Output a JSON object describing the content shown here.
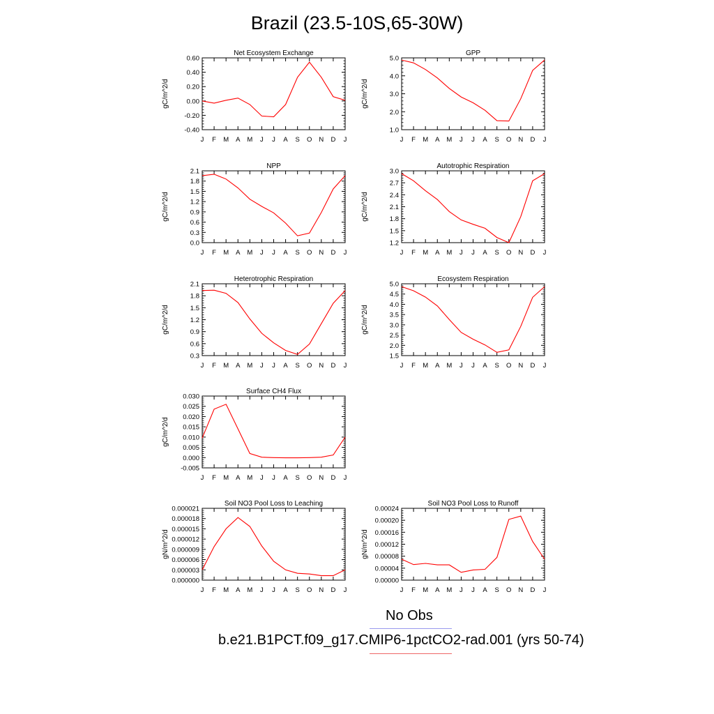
{
  "title": "Brazil (23.5-10S,65-30W)",
  "legend": {
    "obs_label": "No Obs",
    "obs_color": "#9999ee",
    "model_label": "b.e21.B1PCT.f09_g17.CMIP6-1pctCO2-rad.001 (yrs 50-74)",
    "model_color": "#ee6666"
  },
  "chart_data": [
    {
      "type": "line",
      "title": "Net Ecosystem Exchange",
      "ylabel": "gC/m^2/d",
      "categories": [
        "J",
        "F",
        "M",
        "A",
        "M",
        "J",
        "J",
        "A",
        "S",
        "O",
        "N",
        "D",
        "J"
      ],
      "yticks": [
        "0.60",
        "0.40",
        "0.20",
        "0.00",
        "-0.20",
        "-0.40"
      ],
      "ylim": [
        -0.4,
        0.6
      ],
      "series": [
        {
          "values": [
            0.0,
            -0.03,
            0.01,
            0.04,
            -0.05,
            -0.21,
            -0.22,
            -0.05,
            0.33,
            0.54,
            0.33,
            0.06,
            0.01
          ],
          "color": "#ff0000"
        }
      ]
    },
    {
      "type": "line",
      "title": "GPP",
      "ylabel": "gC/m^2/d",
      "categories": [
        "J",
        "F",
        "M",
        "A",
        "M",
        "J",
        "J",
        "A",
        "S",
        "O",
        "N",
        "D",
        "J"
      ],
      "yticks": [
        "5.0",
        "4.0",
        "3.0",
        "2.0",
        "1.0"
      ],
      "ylim": [
        1.0,
        5.0
      ],
      "series": [
        {
          "values": [
            4.88,
            4.72,
            4.35,
            3.88,
            3.3,
            2.82,
            2.5,
            2.08,
            1.5,
            1.48,
            2.72,
            4.3,
            4.88
          ],
          "color": "#ff0000"
        }
      ]
    },
    {
      "type": "line",
      "title": "NPP",
      "ylabel": "gC/m^2/d",
      "categories": [
        "J",
        "F",
        "M",
        "A",
        "M",
        "J",
        "J",
        "A",
        "S",
        "O",
        "N",
        "D",
        "J"
      ],
      "yticks": [
        "2.1",
        "1.8",
        "1.5",
        "1.2",
        "0.9",
        "0.6",
        "0.3",
        "0.0"
      ],
      "ylim": [
        0.0,
        2.1
      ],
      "series": [
        {
          "values": [
            1.96,
            2.0,
            1.86,
            1.6,
            1.27,
            1.06,
            0.87,
            0.57,
            0.2,
            0.28,
            0.88,
            1.57,
            1.96
          ],
          "color": "#ff0000"
        }
      ]
    },
    {
      "type": "line",
      "title": "Autotrophic Respiration",
      "ylabel": "gC/m^2/d",
      "categories": [
        "J",
        "F",
        "M",
        "A",
        "M",
        "J",
        "J",
        "A",
        "S",
        "O",
        "N",
        "D",
        "J"
      ],
      "yticks": [
        "3.0",
        "2.7",
        "2.4",
        "2.1",
        "1.8",
        "1.5",
        "1.2"
      ],
      "ylim": [
        1.2,
        3.0
      ],
      "series": [
        {
          "values": [
            2.93,
            2.75,
            2.5,
            2.28,
            1.98,
            1.77,
            1.66,
            1.56,
            1.33,
            1.2,
            1.85,
            2.75,
            2.93
          ],
          "color": "#ff0000"
        }
      ]
    },
    {
      "type": "line",
      "title": "Heterotrophic Respiration",
      "ylabel": "gC/m^2/d",
      "categories": [
        "J",
        "F",
        "M",
        "A",
        "M",
        "J",
        "J",
        "A",
        "S",
        "O",
        "N",
        "D",
        "J"
      ],
      "yticks": [
        "2.1",
        "1.8",
        "1.5",
        "1.2",
        "0.9",
        "0.6",
        "0.3"
      ],
      "ylim": [
        0.3,
        2.1
      ],
      "series": [
        {
          "values": [
            1.93,
            1.94,
            1.86,
            1.63,
            1.22,
            0.86,
            0.62,
            0.43,
            0.33,
            0.59,
            1.1,
            1.61,
            1.93
          ],
          "color": "#ff0000"
        }
      ]
    },
    {
      "type": "line",
      "title": "Ecosystem Respiration",
      "ylabel": "gC/m^2/d",
      "categories": [
        "J",
        "F",
        "M",
        "A",
        "M",
        "J",
        "J",
        "A",
        "S",
        "O",
        "N",
        "D",
        "J"
      ],
      "yticks": [
        "5.0",
        "4.5",
        "4.0",
        "3.5",
        "3.0",
        "2.5",
        "2.0",
        "1.5"
      ],
      "ylim": [
        1.5,
        5.0
      ],
      "series": [
        {
          "values": [
            4.86,
            4.66,
            4.35,
            3.92,
            3.26,
            2.63,
            2.3,
            2.02,
            1.66,
            1.78,
            2.92,
            4.34,
            4.86
          ],
          "color": "#ff0000"
        }
      ]
    },
    {
      "type": "line",
      "title": "Surface CH4 Flux",
      "ylabel": "gC/m^2/d",
      "categories": [
        "J",
        "F",
        "M",
        "A",
        "M",
        "J",
        "J",
        "A",
        "S",
        "O",
        "N",
        "D",
        "J"
      ],
      "yticks": [
        "0.030",
        "0.025",
        "0.020",
        "0.015",
        "0.010",
        "0.005",
        "0.000",
        "-0.005"
      ],
      "ylim": [
        -0.005,
        0.03
      ],
      "series": [
        {
          "values": [
            0.0095,
            0.0236,
            0.026,
            0.014,
            0.002,
            0.0002,
            0.0,
            -0.0001,
            -0.0001,
            0.0,
            0.0002,
            0.0013,
            0.01
          ],
          "color": "#ff0000"
        }
      ]
    },
    {
      "type": "line",
      "title": "Soil NO3 Pool Loss to Leaching",
      "ylabel": "gN/m^2/d",
      "categories": [
        "J",
        "F",
        "M",
        "A",
        "M",
        "J",
        "J",
        "A",
        "S",
        "O",
        "N",
        "D",
        "J"
      ],
      "yticks": [
        "0.000021",
        "0.000018",
        "0.000015",
        "0.000012",
        "0.000009",
        "0.000006",
        "0.000003",
        "0.000000"
      ],
      "ylim": [
        0.0,
        2.1e-05
      ],
      "series": [
        {
          "values": [
            3e-06,
            9.8e-06,
            1.5e-05,
            1.83e-05,
            1.57e-05,
            1e-05,
            5.5e-06,
            3e-06,
            2e-06,
            1.8e-06,
            1.3e-06,
            1.3e-06,
            3e-06
          ],
          "color": "#ff0000"
        }
      ]
    },
    {
      "type": "line",
      "title": "Soil NO3 Pool Loss to Runoff",
      "ylabel": "gN/m^2/d",
      "categories": [
        "J",
        "F",
        "M",
        "A",
        "M",
        "J",
        "J",
        "A",
        "S",
        "O",
        "N",
        "D",
        "J"
      ],
      "yticks": [
        "0.00024",
        "0.00020",
        "0.00016",
        "0.00012",
        "0.00008",
        "0.00004",
        "0.00000"
      ],
      "ylim": [
        0.0,
        0.00024
      ],
      "series": [
        {
          "values": [
            7e-05,
            5.2e-05,
            5.6e-05,
            5.1e-05,
            5.1e-05,
            2.6e-05,
            3.4e-05,
            3.6e-05,
            7.6e-05,
            0.000203,
            0.000214,
            0.000129,
            7e-05
          ],
          "color": "#ff0000"
        }
      ]
    }
  ]
}
